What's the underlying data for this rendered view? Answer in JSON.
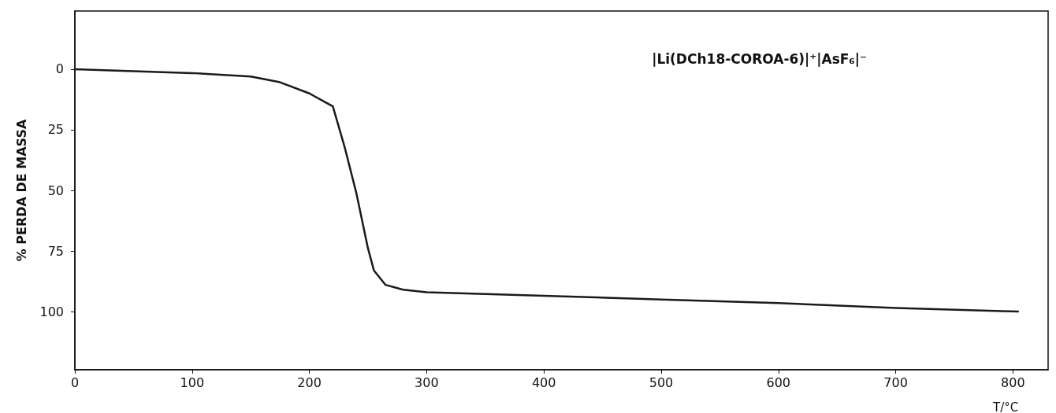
{
  "chart_data": {
    "type": "line",
    "xlabel": "T/°C",
    "ylabel": "% PERDA DE MASSA",
    "annotations": [
      "|Li(DCh18-COROA-6)|⁺|AsF₆|⁻"
    ],
    "x": [
      0,
      50,
      100,
      150,
      175,
      200,
      215,
      220,
      230,
      240,
      250,
      255,
      265,
      280,
      300,
      400,
      500,
      600,
      700,
      805
    ],
    "series": [
      {
        "color": "#1a1a1a",
        "values": [
          0,
          0.8,
          1.6,
          3,
          5.4,
          10,
          14,
          15.3,
          32,
          51,
          74,
          83,
          89,
          91,
          92,
          93.5,
          95,
          96.5,
          98.5,
          100
        ]
      }
    ],
    "xlim": [
      0,
      830
    ],
    "xticks": [
      0,
      100,
      200,
      300,
      400,
      500,
      600,
      700,
      800
    ],
    "ylim": [
      124,
      -24
    ],
    "yticks": [
      0,
      25,
      50,
      75,
      100
    ],
    "grid": false,
    "marker": "none",
    "line_style": "solid"
  }
}
